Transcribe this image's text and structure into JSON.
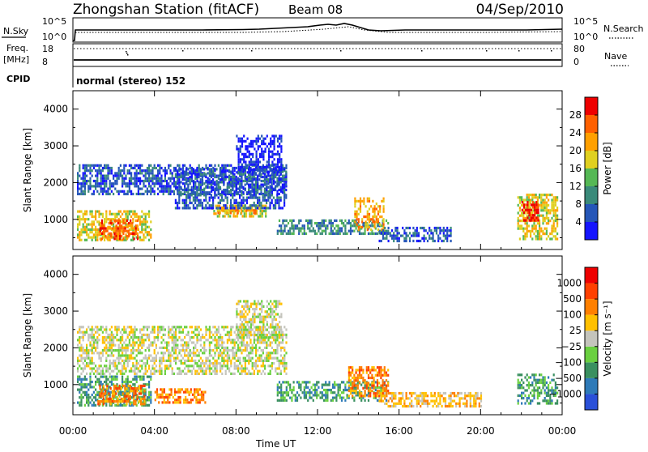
{
  "header": {
    "title": "Zhongshan Station (fitACF)",
    "beam": "Beam 08",
    "date": "04/Sep/2010"
  },
  "aux": {
    "nsky_label": "N.Sky",
    "nsky_ticks": [
      "10^5",
      "10^0"
    ],
    "nsearch_label": "N.Search",
    "nsearch_ticks": [
      "10^5",
      "10^0"
    ],
    "freq_label_line1": "Freq.",
    "freq_label_line2": "[MHz]",
    "freq_ticks": [
      "18",
      "8"
    ],
    "nave_label": "Nave",
    "nave_ticks": [
      "80",
      "0"
    ],
    "cpid_label": "CPID",
    "cpid_text": "normal (stereo) 152"
  },
  "chart_data": [
    {
      "type": "heatmap",
      "name": "power-panel",
      "ylabel": "Slant Range [km]",
      "y_ticks": [
        "1000",
        "2000",
        "3000",
        "4000"
      ],
      "ylim": [
        180,
        4500
      ],
      "xlim": [
        0,
        24
      ],
      "colorbar_label": "Power [dB]",
      "colorbar_ticks": [
        "28",
        "24",
        "20",
        "16",
        "12",
        "8",
        "4"
      ],
      "colors": [
        "#1515ff",
        "#2556b8",
        "#3a8a7a",
        "#55b855",
        "#e0d020",
        "#ffa000",
        "#ff6000",
        "#ee0000"
      ],
      "regions": [
        {
          "t0": 0.2,
          "t1": 3.8,
          "r0": 450,
          "r1": 1250,
          "level": 4
        },
        {
          "t0": 1.3,
          "t1": 3.2,
          "r0": 500,
          "r1": 1000,
          "level": 6
        },
        {
          "t0": 6.8,
          "t1": 9.5,
          "r0": 1100,
          "r1": 1400,
          "level": 4
        },
        {
          "t0": 7.0,
          "t1": 9.0,
          "r0": 1200,
          "r1": 1350,
          "level": 5
        },
        {
          "t0": 0.2,
          "t1": 10.5,
          "r0": 1700,
          "r1": 2500,
          "level": 1
        },
        {
          "t0": 5.0,
          "t1": 10.5,
          "r0": 1300,
          "r1": 2400,
          "level": 1
        },
        {
          "t0": 8.0,
          "t1": 10.2,
          "r0": 2300,
          "r1": 3300,
          "level": 0
        },
        {
          "t0": 10.0,
          "t1": 15.5,
          "r0": 600,
          "r1": 1000,
          "level": 2
        },
        {
          "t0": 13.8,
          "t1": 15.2,
          "r0": 700,
          "r1": 1600,
          "level": 5
        },
        {
          "t0": 15.0,
          "t1": 18.5,
          "r0": 400,
          "r1": 800,
          "level": 1
        },
        {
          "t0": 21.8,
          "t1": 23.8,
          "r0": 500,
          "r1": 1700,
          "level": 4
        },
        {
          "t0": 22.0,
          "t1": 22.8,
          "r0": 1000,
          "r1": 1500,
          "level": 7
        }
      ]
    },
    {
      "type": "heatmap",
      "name": "velocity-panel",
      "ylabel": "Slant Range [km]",
      "y_ticks": [
        "1000",
        "2000",
        "3000",
        "4000"
      ],
      "ylim": [
        180,
        4500
      ],
      "xlim": [
        0,
        24
      ],
      "x_ticks": [
        "00:00",
        "04:00",
        "08:00",
        "12:00",
        "16:00",
        "20:00",
        "00:00"
      ],
      "xlabel": "Time UT",
      "colorbar_label": "Velocity [m s⁻¹]",
      "colorbar_ticks": [
        "1000",
        "500",
        "100",
        "25",
        "−25",
        "−100",
        "−500",
        "−1000"
      ],
      "colors": [
        "#2a50d8",
        "#2e7ab8",
        "#3a9060",
        "#6ad040",
        "#c4c4bc",
        "#ffc000",
        "#ff8000",
        "#ff4000",
        "#ee0000"
      ],
      "regions": [
        {
          "t0": 0.2,
          "t1": 10.5,
          "r0": 1300,
          "r1": 2600,
          "level": 4
        },
        {
          "t0": 8.0,
          "t1": 10.2,
          "r0": 2300,
          "r1": 3300,
          "level": 4
        },
        {
          "t0": 0.2,
          "t1": 3.8,
          "r0": 450,
          "r1": 1250,
          "level": 2
        },
        {
          "t0": 1.2,
          "t1": 3.5,
          "r0": 450,
          "r1": 1000,
          "level": 6
        },
        {
          "t0": 4.0,
          "t1": 6.5,
          "r0": 500,
          "r1": 900,
          "level": 6
        },
        {
          "t0": 10.0,
          "t1": 15.5,
          "r0": 600,
          "r1": 1100,
          "level": 2
        },
        {
          "t0": 13.5,
          "t1": 15.5,
          "r0": 700,
          "r1": 1500,
          "level": 6
        },
        {
          "t0": 15.0,
          "t1": 20.0,
          "r0": 400,
          "r1": 800,
          "level": 5
        },
        {
          "t0": 21.8,
          "t1": 23.8,
          "r0": 500,
          "r1": 1300,
          "level": 2
        }
      ]
    }
  ]
}
